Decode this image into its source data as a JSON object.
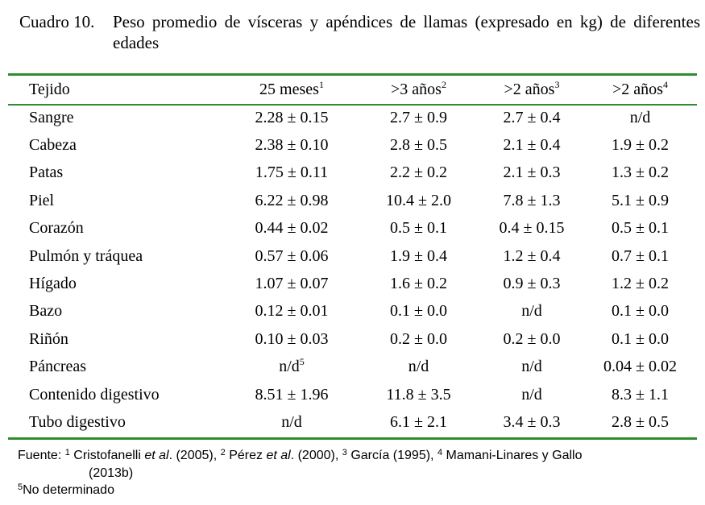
{
  "caption": {
    "number": "Cuadro 10.",
    "text": "Peso promedio de vísceras y apéndices de llamas (expresado en kg) de diferentes edades"
  },
  "table": {
    "headers": [
      {
        "label": "Tejido",
        "sup": ""
      },
      {
        "label": "25 meses",
        "sup": "1"
      },
      {
        "label": ">3 años",
        "sup": "2"
      },
      {
        "label": ">2 años",
        "sup": "3"
      },
      {
        "label": ">2 años",
        "sup": "4"
      }
    ],
    "rows": [
      {
        "tissue": "Sangre",
        "c1": "2.28 ± 0.15",
        "c2": "2.7 ± 0.9",
        "c3": "2.7 ± 0.4",
        "c4": "n/d"
      },
      {
        "tissue": "Cabeza",
        "c1": "2.38 ± 0.10",
        "c2": "2.8 ± 0.5",
        "c3": "2.1 ± 0.4",
        "c4": "1.9 ± 0.2"
      },
      {
        "tissue": "Patas",
        "c1": "1.75 ± 0.11",
        "c2": "2.2 ± 0.2",
        "c3": "2.1 ± 0.3",
        "c4": "1.3 ± 0.2"
      },
      {
        "tissue": "Piel",
        "c1": "6.22 ± 0.98",
        "c2": "10.4 ± 2.0",
        "c3": "7.8 ± 1.3",
        "c4": "5.1 ± 0.9"
      },
      {
        "tissue": "Corazón",
        "c1": "0.44 ± 0.02",
        "c2": "0.5 ± 0.1",
        "c3": "0.4 ± 0.15",
        "c4": "0.5 ± 0.1"
      },
      {
        "tissue": "Pulmón y tráquea",
        "c1": "0.57 ± 0.06",
        "c2": "1.9 ± 0.4",
        "c3": "1.2 ± 0.4",
        "c4": "0.7 ± 0.1"
      },
      {
        "tissue": "Hígado",
        "c1": "1.07 ± 0.07",
        "c2": "1.6 ± 0.2",
        "c3": "0.9 ± 0.3",
        "c4": "1.2 ± 0.2"
      },
      {
        "tissue": "Bazo",
        "c1": "0.12 ± 0.01",
        "c2": "0.1 ± 0.0",
        "c3": "n/d",
        "c4": "0.1 ± 0.0"
      },
      {
        "tissue": "Riñón",
        "c1": "0.10 ± 0.03",
        "c2": "0.2 ± 0.0",
        "c3": "0.2 ± 0.0",
        "c4": "0.1 ± 0.0"
      },
      {
        "tissue": "Páncreas",
        "c1": "n/d",
        "c1_sup": "5",
        "c2": "n/d",
        "c3": "n/d",
        "c4": "0.04 ± 0.02"
      },
      {
        "tissue": "Contenido digestivo",
        "c1": "8.51 ± 1.96",
        "c2": "11.8 ± 3.5",
        "c3": "n/d",
        "c4": "8.3 ± 1.1"
      },
      {
        "tissue": "Tubo digestivo",
        "c1": "n/d",
        "c2": "6.1 ± 2.1",
        "c3": "3.4 ± 0.3",
        "c4": "2.8 ± 0.5"
      }
    ]
  },
  "footnotes": {
    "label": "Fuente:",
    "sources": [
      {
        "sup": "1",
        "pre": "Cristofanelli ",
        "em": "et al",
        "post": ". (2005),"
      },
      {
        "sup": "2",
        "pre": "Pérez ",
        "em": "et al",
        "post": ". (2000),"
      },
      {
        "sup": "3",
        "pre": "García (1995),",
        "em": "",
        "post": ""
      },
      {
        "sup": "4",
        "pre": "Mamani-Linares y Gallo",
        "em": "",
        "post": ""
      }
    ],
    "continuation": "(2013b)",
    "note_sup": "5",
    "note_text": "No determinado"
  },
  "colors": {
    "rule": "#2e8b2e",
    "text": "#000000"
  }
}
